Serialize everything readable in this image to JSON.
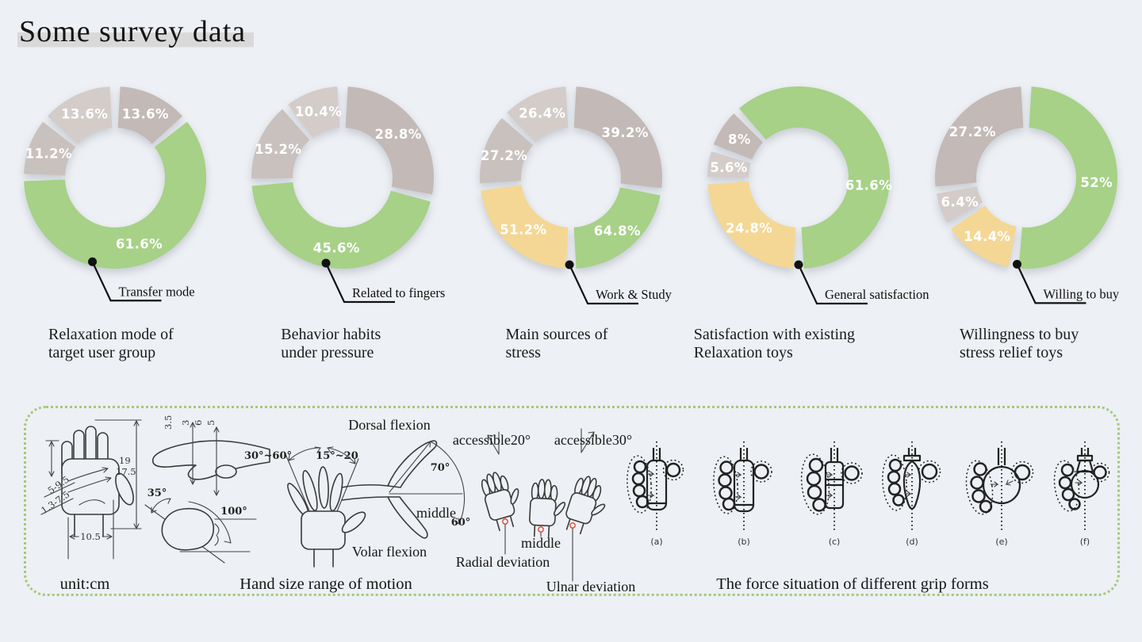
{
  "page": {
    "title": "Some survey data"
  },
  "palette": {
    "green": "#a6d186",
    "yellow": "#f4d795",
    "taupe": "#c3b9b6",
    "gray": "#c9c1be",
    "lightgray": "#d3ccc9",
    "ink": "#111111",
    "label_white": "#ffffff",
    "panel_border": "#a3c97c",
    "red_mark": "#e0402a",
    "background": "#edf0f4"
  },
  "chart_data": [
    {
      "type": "donut",
      "title_lines": [
        "Relaxation mode of",
        "target user group"
      ],
      "callout": "Transfer mode",
      "dot_angle": 195,
      "segments": [
        {
          "label": "13.6%",
          "value": 13.6,
          "color": "taupe",
          "start": 2,
          "end": 49
        },
        {
          "label": "61.6%",
          "value": 61.6,
          "color": "green",
          "start": 51,
          "end": 269
        },
        {
          "label": "11.2%",
          "value": 11.2,
          "color": "gray",
          "start": 271,
          "end": 309
        },
        {
          "label": "13.6%",
          "value": 13.6,
          "color": "lightgray",
          "start": 311,
          "end": 358
        }
      ]
    },
    {
      "type": "donut",
      "title_lines": [
        "Behavior habits",
        "under pressure"
      ],
      "callout": "Related to fingers",
      "dot_angle": 191,
      "segments": [
        {
          "label": "28.8%",
          "value": 28.8,
          "color": "taupe",
          "start": 2,
          "end": 102
        },
        {
          "label": "45.6%",
          "value": 45.6,
          "color": "green",
          "start": 104,
          "end": 266
        },
        {
          "label": "15.2%",
          "value": 15.2,
          "color": "gray",
          "start": 268,
          "end": 320
        },
        {
          "label": "10.4%",
          "value": 10.4,
          "color": "lightgray",
          "start": 322,
          "end": 358
        }
      ]
    },
    {
      "type": "donut",
      "title_lines": [
        "Main sources of",
        "stress"
      ],
      "callout": "Work & Study",
      "dot_angle": 181,
      "segments": [
        {
          "label": "39.2%",
          "value": 39.2,
          "color": "taupe",
          "start": 2,
          "end": 98
        },
        {
          "label": "64.8%",
          "value": 64.8,
          "color": "green",
          "start": 100,
          "end": 178
        },
        {
          "label": "51.2%",
          "value": 51.2,
          "color": "yellow",
          "start": 182,
          "end": 263
        },
        {
          "label": "27.2%",
          "value": 27.2,
          "color": "gray",
          "start": 265,
          "end": 312
        },
        {
          "label": "26.4%",
          "value": 26.4,
          "color": "lightgray",
          "start": 314,
          "end": 358
        }
      ]
    },
    {
      "type": "donut",
      "title_lines": [
        "Satisfaction with existing",
        "Relaxation toys"
      ],
      "callout": "General satisfaction",
      "dot_angle": 180,
      "segments": [
        {
          "label": "61.6%",
          "value": 61.6,
          "color": "green",
          "start": 318,
          "end": 538,
          "label_angle": 96
        },
        {
          "label": "24.8%",
          "value": 24.8,
          "color": "yellow",
          "start": 182,
          "end": 267
        },
        {
          "label": "5.6%",
          "value": 5.6,
          "color": "lightgray",
          "start": 269,
          "end": 288
        },
        {
          "label": "8%",
          "value": 8,
          "color": "taupe",
          "start": 290,
          "end": 316
        }
      ]
    },
    {
      "type": "donut",
      "title_lines": [
        "Willingness to buy",
        "stress relief toys"
      ],
      "callout": "Willing to buy",
      "dot_angle": 186,
      "segments": [
        {
          "label": "52%",
          "value": 52,
          "color": "green",
          "start": 2,
          "end": 186
        },
        {
          "label": "14.4%",
          "value": 14.4,
          "color": "yellow",
          "start": 190,
          "end": 237
        },
        {
          "label": "6.4%",
          "value": 6.4,
          "color": "lightgray",
          "start": 239,
          "end": 261
        },
        {
          "label": "27.2%",
          "value": 27.2,
          "color": "taupe",
          "start": 263,
          "end": 358
        }
      ]
    }
  ],
  "panel": {
    "unit_caption": "unit:cm",
    "motion_caption": "Hand size range of motion",
    "grip_caption": "The force situation of different grip forms",
    "measurements": {
      "palm_diag1": "5-9.5",
      "palm_diag2": "1.3-7.5",
      "length1": "19",
      "length2": "17.5",
      "width": "10.5",
      "side1": "3.5",
      "side2": "3",
      "side3": "6",
      "side4": "5",
      "fist_angle": "35°",
      "sweep_angle": "100°",
      "spread_left": "30°~60°",
      "spread_right": "15°~20",
      "dorsal": "Dorsal flexion",
      "volar": "Volar flexion",
      "dorsal_angle": "70°",
      "volar_angle": "60°",
      "flex_middle": "middle",
      "acc20": "accessible20°",
      "acc30": "accessible30°",
      "dev_middle": "middle",
      "radial": "Radial deviation",
      "ulnar": "Ulnar deviation"
    },
    "grip_labels": [
      "(a)",
      "(b)",
      "(c)",
      "(d)",
      "(e)",
      "(f)"
    ]
  }
}
